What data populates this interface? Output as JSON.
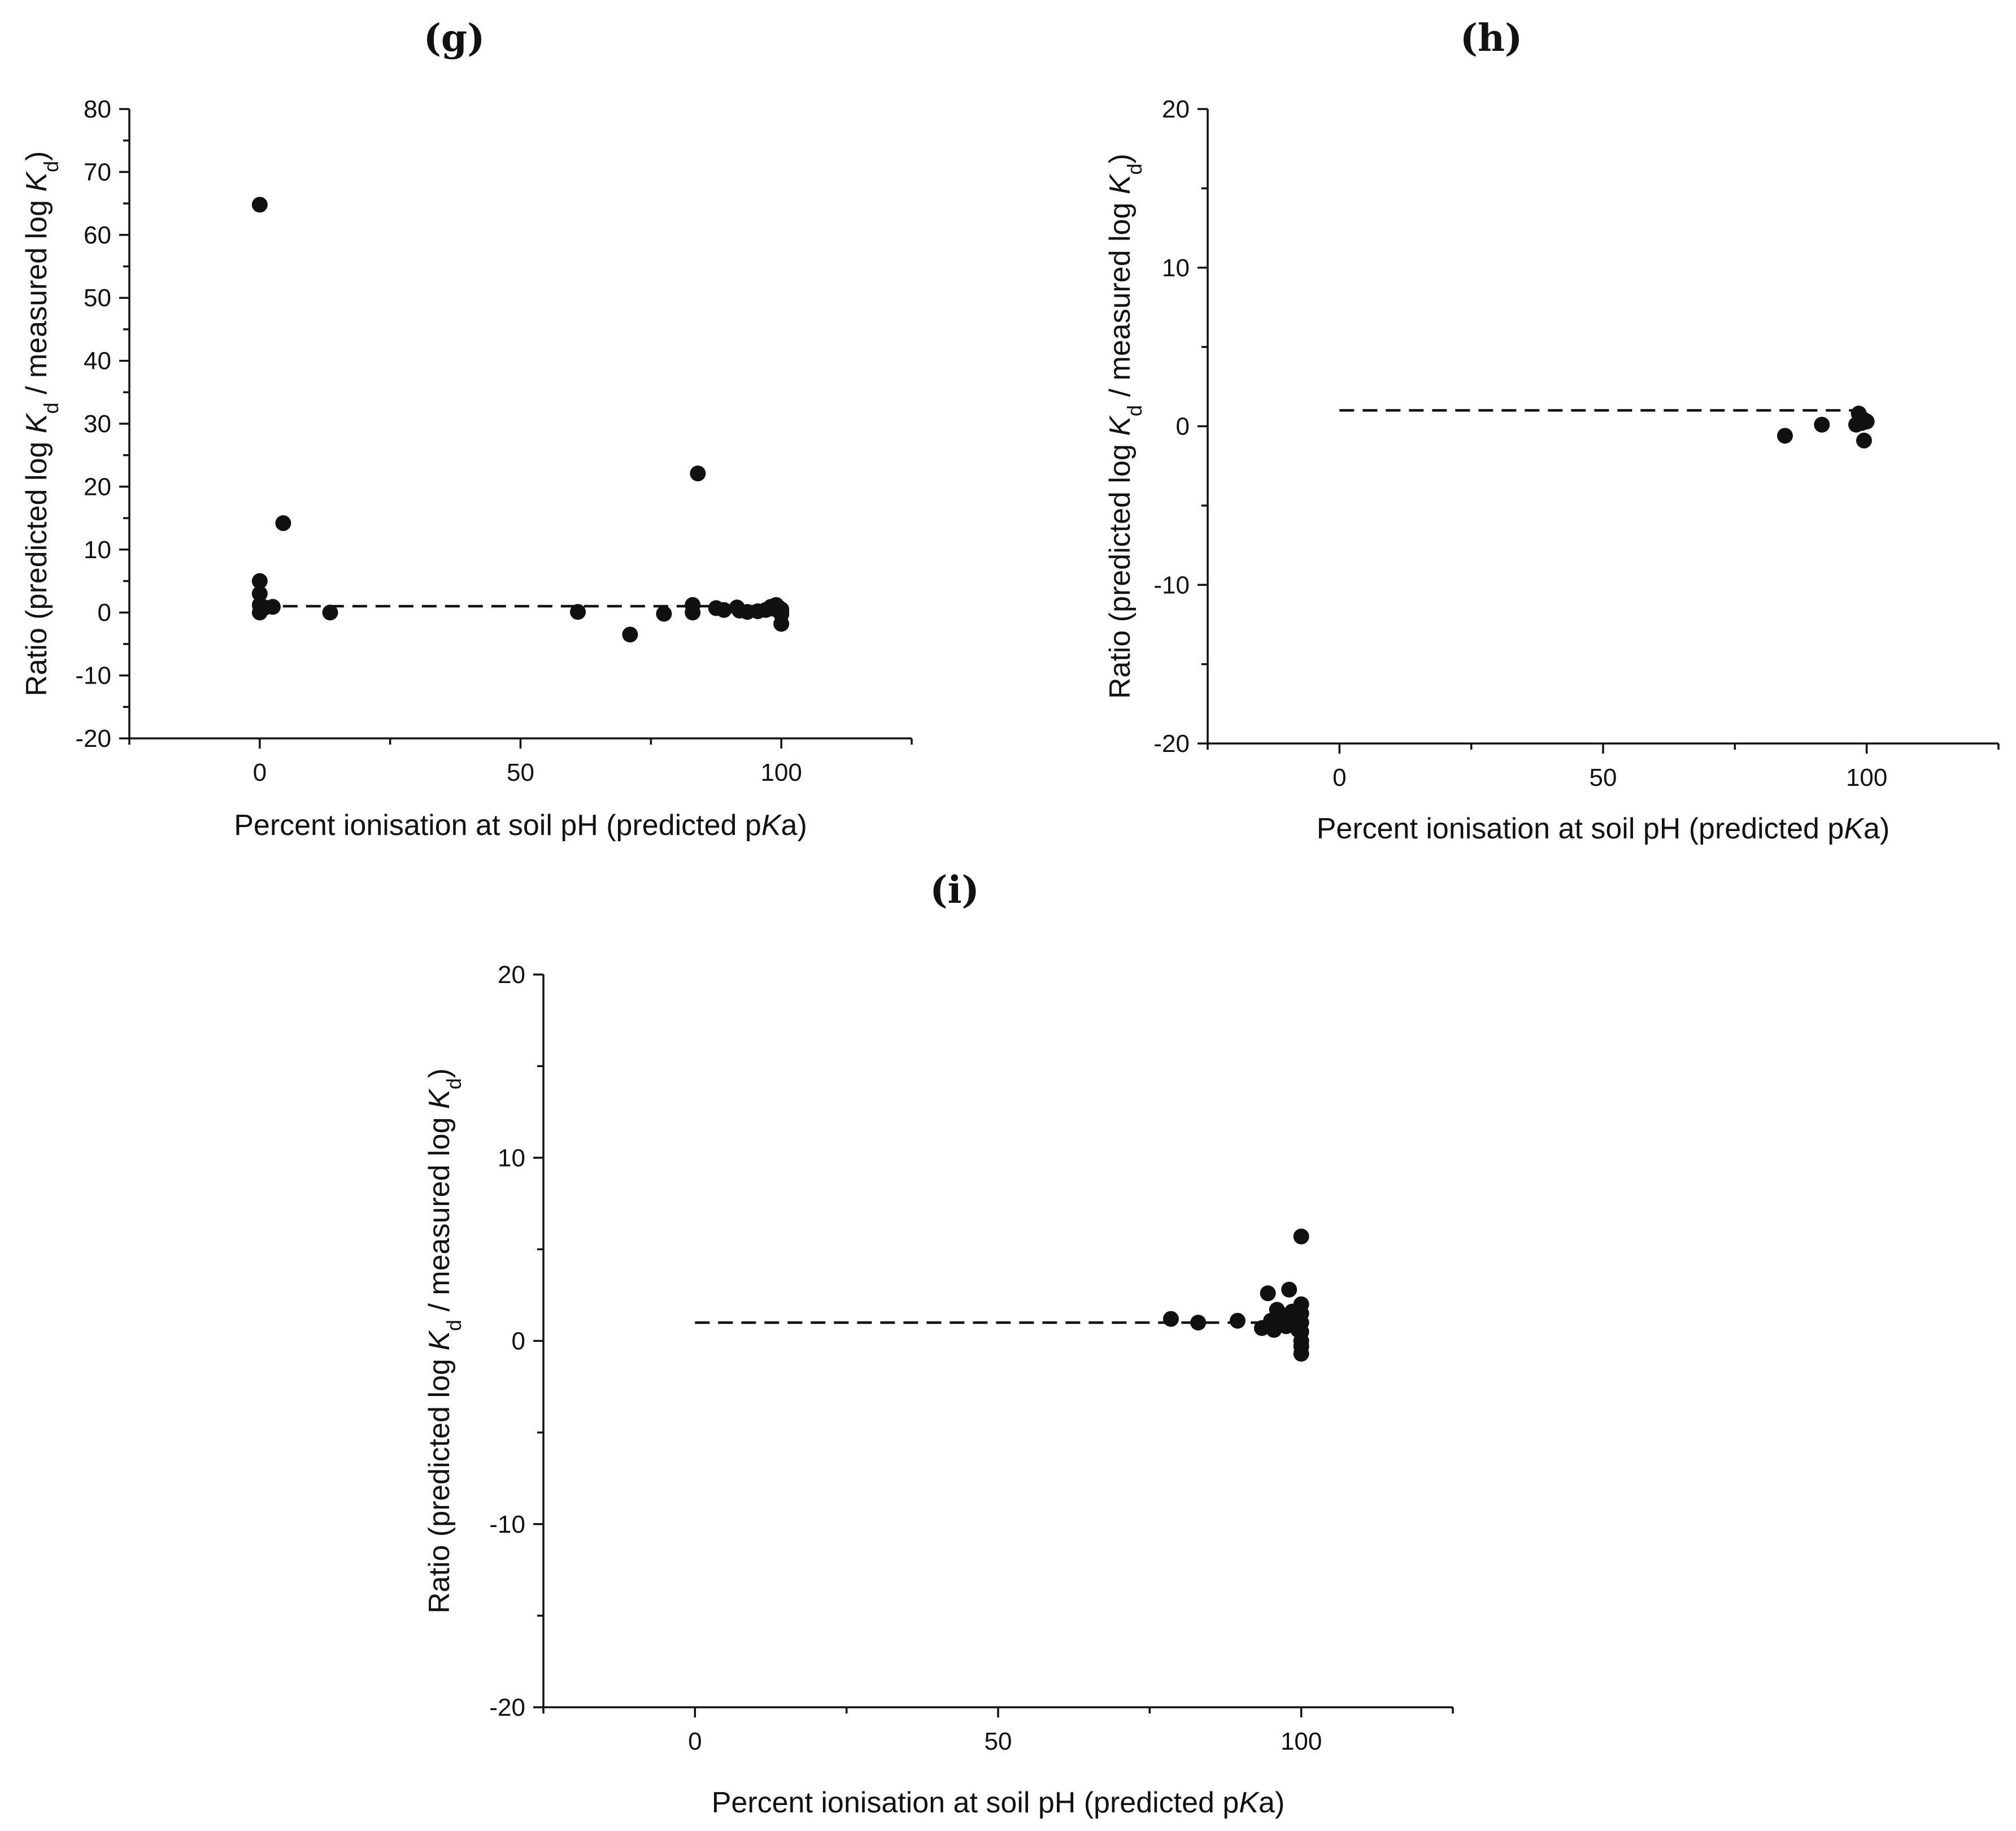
{
  "chart_data": [
    {
      "panel": "(g)",
      "type": "scatter",
      "title": "(g)",
      "xlabel": "Percent ionisation at soil pH (predicted pKa)",
      "xlabel_parts": [
        "Percent ionisation at soil pH (predicted p",
        "K",
        "a)"
      ],
      "ylabel": "Ratio (predicted log Kd / measured log Kd)",
      "ylabel_parts": [
        "Ratio (predicted log ",
        "K",
        "d",
        " / measured  log ",
        "K",
        "d",
        ")"
      ],
      "xlim": [
        -25,
        125
      ],
      "ylim": [
        -20,
        80
      ],
      "xticks": [
        0,
        50,
        100
      ],
      "xtick_labels": [
        "0",
        "50",
        "100"
      ],
      "yticks": [
        -20,
        -10,
        0,
        10,
        20,
        30,
        40,
        50,
        60,
        70,
        80
      ],
      "ytick_labels": [
        "-20",
        "-10",
        "0",
        "10",
        "20",
        "30",
        "40",
        "50",
        "60",
        "70",
        "80"
      ],
      "reference_line": {
        "style": "dashed",
        "y": 1,
        "x_from": 0,
        "x_to": 100
      },
      "points": [
        {
          "x": 0,
          "y": 64.8
        },
        {
          "x": 0,
          "y": 5
        },
        {
          "x": 0,
          "y": 3
        },
        {
          "x": 0,
          "y": 1.2
        },
        {
          "x": 0,
          "y": 0
        },
        {
          "x": 1,
          "y": 0.8
        },
        {
          "x": 2.5,
          "y": 0.9
        },
        {
          "x": 4.5,
          "y": 14.2
        },
        {
          "x": 13.5,
          "y": 0
        },
        {
          "x": 61,
          "y": 0.1
        },
        {
          "x": 71,
          "y": -3.5
        },
        {
          "x": 77.5,
          "y": -0.2
        },
        {
          "x": 83,
          "y": 1.2
        },
        {
          "x": 83,
          "y": 0
        },
        {
          "x": 84,
          "y": 22.1
        },
        {
          "x": 87.5,
          "y": 0.7
        },
        {
          "x": 89,
          "y": 0.4
        },
        {
          "x": 91.5,
          "y": 0.8
        },
        {
          "x": 92,
          "y": 0.3
        },
        {
          "x": 93.5,
          "y": 0.1
        },
        {
          "x": 95.5,
          "y": 0.2
        },
        {
          "x": 97,
          "y": 0.4
        },
        {
          "x": 98,
          "y": 0.9
        },
        {
          "x": 98.5,
          "y": 0.6
        },
        {
          "x": 99,
          "y": 1.2
        },
        {
          "x": 99.5,
          "y": 0.8
        },
        {
          "x": 100,
          "y": 0.5
        },
        {
          "x": 100,
          "y": 0
        },
        {
          "x": 100,
          "y": -0.3
        },
        {
          "x": 100,
          "y": -1.8
        }
      ]
    },
    {
      "panel": "(h)",
      "type": "scatter",
      "title": "(h)",
      "xlabel": "Percent ionisation at soil pH (predicted pKa)",
      "xlabel_parts": [
        "Percent ionisation at soil pH (predicted p",
        "K",
        "a)"
      ],
      "ylabel": "Ratio (predicted log Kd / measured log Kd)",
      "ylabel_parts": [
        "Ratio (predicted log ",
        "K",
        "d",
        " / measured  log ",
        "K",
        "d",
        ")"
      ],
      "xlim": [
        -25,
        125
      ],
      "ylim": [
        -20,
        20
      ],
      "xticks": [
        0,
        50,
        100
      ],
      "xtick_labels": [
        "0",
        "50",
        "100"
      ],
      "yticks": [
        -20,
        -10,
        0,
        10,
        20
      ],
      "ytick_labels": [
        "-20",
        "-10",
        "0",
        "10",
        "20"
      ],
      "reference_line": {
        "style": "dashed",
        "y": 1,
        "x_from": 0,
        "x_to": 100
      },
      "points": [
        {
          "x": 84.5,
          "y": -0.6
        },
        {
          "x": 91.5,
          "y": 0.1
        },
        {
          "x": 98,
          "y": 0.1
        },
        {
          "x": 98.5,
          "y": 0.8
        },
        {
          "x": 99,
          "y": 0.2
        },
        {
          "x": 99.5,
          "y": 0.4
        },
        {
          "x": 100,
          "y": 0.3
        },
        {
          "x": 99.5,
          "y": -0.9
        }
      ]
    },
    {
      "panel": "(i)",
      "type": "scatter",
      "title": "(i)",
      "xlabel": "Percent ionisation at soil pH (predicted pKa)",
      "xlabel_parts": [
        "Percent ionisation at soil pH (predicted p",
        "K",
        "a)"
      ],
      "ylabel": "Ratio (predicted log Kd / measured log Kd)",
      "ylabel_parts": [
        "Ratio (predicted log ",
        "K",
        "d",
        " / measured  log ",
        "K",
        "d",
        ")"
      ],
      "xlim": [
        -25,
        125
      ],
      "ylim": [
        -20,
        20
      ],
      "xticks": [
        0,
        50,
        100
      ],
      "xtick_labels": [
        "0",
        "50",
        "100"
      ],
      "yticks": [
        -20,
        -10,
        0,
        10,
        20
      ],
      "ytick_labels": [
        "-20",
        "-10",
        "0",
        "10",
        "20"
      ],
      "reference_line": {
        "style": "dashed",
        "y": 1,
        "x_from": 0,
        "x_to": 100
      },
      "points": [
        {
          "x": 78.5,
          "y": 1.2
        },
        {
          "x": 83,
          "y": 1
        },
        {
          "x": 89.5,
          "y": 1.1
        },
        {
          "x": 93.5,
          "y": 0.7
        },
        {
          "x": 94.5,
          "y": 2.6
        },
        {
          "x": 95,
          "y": 1.1
        },
        {
          "x": 95.5,
          "y": 0.6
        },
        {
          "x": 96,
          "y": 1.7
        },
        {
          "x": 96.5,
          "y": 0.9
        },
        {
          "x": 97,
          "y": 1.4
        },
        {
          "x": 97.5,
          "y": 0.8
        },
        {
          "x": 98,
          "y": 2.8
        },
        {
          "x": 98.5,
          "y": 1.6
        },
        {
          "x": 99,
          "y": 1.2
        },
        {
          "x": 99.5,
          "y": 0.6
        },
        {
          "x": 100,
          "y": 5.7
        },
        {
          "x": 100,
          "y": 2
        },
        {
          "x": 100,
          "y": 1.5
        },
        {
          "x": 100,
          "y": 1
        },
        {
          "x": 100,
          "y": 0.5
        },
        {
          "x": 100,
          "y": 0
        },
        {
          "x": 100,
          "y": -0.3
        },
        {
          "x": 100,
          "y": -0.7
        }
      ]
    }
  ]
}
